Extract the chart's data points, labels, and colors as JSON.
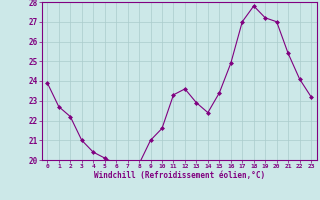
{
  "x": [
    0,
    1,
    2,
    3,
    4,
    5,
    6,
    7,
    8,
    9,
    10,
    11,
    12,
    13,
    14,
    15,
    16,
    17,
    18,
    19,
    20,
    21,
    22,
    23
  ],
  "y": [
    23.9,
    22.7,
    22.2,
    21.0,
    20.4,
    20.1,
    19.8,
    19.8,
    19.8,
    21.0,
    21.6,
    23.3,
    23.6,
    22.9,
    22.4,
    23.4,
    24.9,
    27.0,
    27.8,
    27.2,
    27.0,
    25.4,
    24.1,
    23.2
  ],
  "line_color": "#800080",
  "marker": "D",
  "marker_size": 2.0,
  "bg_color": "#cce8e8",
  "grid_color": "#aacccc",
  "xlabel": "Windchill (Refroidissement éolien,°C)",
  "xlabel_color": "#800080",
  "tick_color": "#800080",
  "ylim": [
    20,
    28
  ],
  "yticks": [
    20,
    21,
    22,
    23,
    24,
    25,
    26,
    27,
    28
  ],
  "xlim": [
    -0.5,
    23.5
  ],
  "xticks": [
    0,
    1,
    2,
    3,
    4,
    5,
    6,
    7,
    8,
    9,
    10,
    11,
    12,
    13,
    14,
    15,
    16,
    17,
    18,
    19,
    20,
    21,
    22,
    23
  ]
}
